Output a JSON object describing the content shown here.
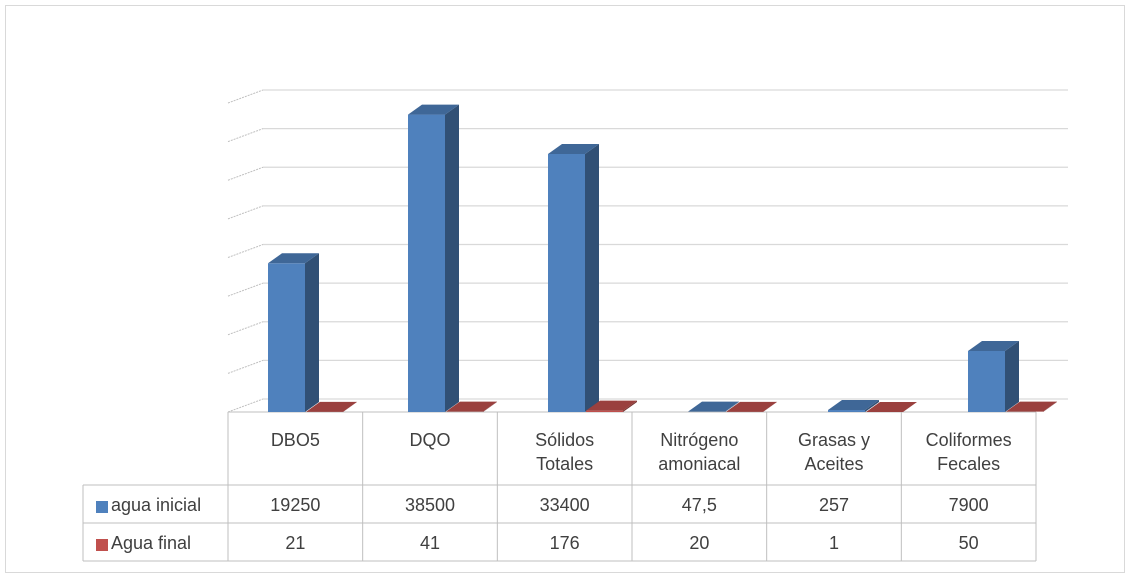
{
  "chart_data": {
    "type": "bar",
    "style": "3d-column-with-data-table",
    "categories": [
      [
        "DBO5"
      ],
      [
        "DQO"
      ],
      [
        "Sólidos",
        "Totales"
      ],
      [
        "Nitrógeno",
        "amoniacal"
      ],
      [
        "Grasas y",
        "Aceites"
      ],
      [
        "Coliformes",
        "Fecales"
      ]
    ],
    "series": [
      {
        "name": "agua inicial",
        "color": "#4f81bd",
        "values": [
          19250,
          38500,
          33400,
          47.5,
          257,
          7900
        ],
        "labels": [
          "19250",
          "38500",
          "33400",
          "47,5",
          "257",
          "7900"
        ]
      },
      {
        "name": "Agua final",
        "color": "#c0504d",
        "values": [
          21,
          41,
          176,
          20,
          1,
          50
        ],
        "labels": [
          "21",
          "41",
          "176",
          "20",
          "1",
          "50"
        ]
      }
    ],
    "ylim": [
      0,
      40000
    ],
    "gridline_count": 8,
    "grid": true,
    "legend_placement": "data-table-left",
    "axis_tick_labels_visible": false
  }
}
